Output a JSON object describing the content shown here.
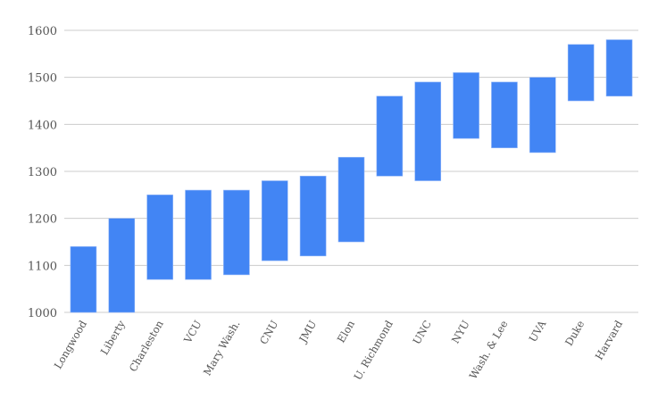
{
  "chart_data": {
    "type": "bar",
    "subtype": "floating-range",
    "title": "",
    "xlabel": "",
    "ylabel": "",
    "ylim": [
      1000,
      1600
    ],
    "yticks": [
      1000,
      1100,
      1200,
      1300,
      1400,
      1500,
      1600
    ],
    "grid": true,
    "legend": "none",
    "bar_color": "#4285f4",
    "categories": [
      "Longwood",
      "Liberty",
      "Charleston",
      "VCU",
      "Mary Wash.",
      "CNU",
      "JMU",
      "Elon",
      "U. Richmond",
      "UNC",
      "NYU",
      "Wash. & Lee",
      "UVA",
      "Duke",
      "Harvard"
    ],
    "low": [
      1000,
      1000,
      1070,
      1070,
      1080,
      1110,
      1120,
      1150,
      1290,
      1280,
      1370,
      1350,
      1340,
      1450,
      1460
    ],
    "high": [
      1140,
      1200,
      1250,
      1260,
      1260,
      1280,
      1290,
      1330,
      1460,
      1490,
      1510,
      1490,
      1500,
      1570,
      1580
    ]
  }
}
